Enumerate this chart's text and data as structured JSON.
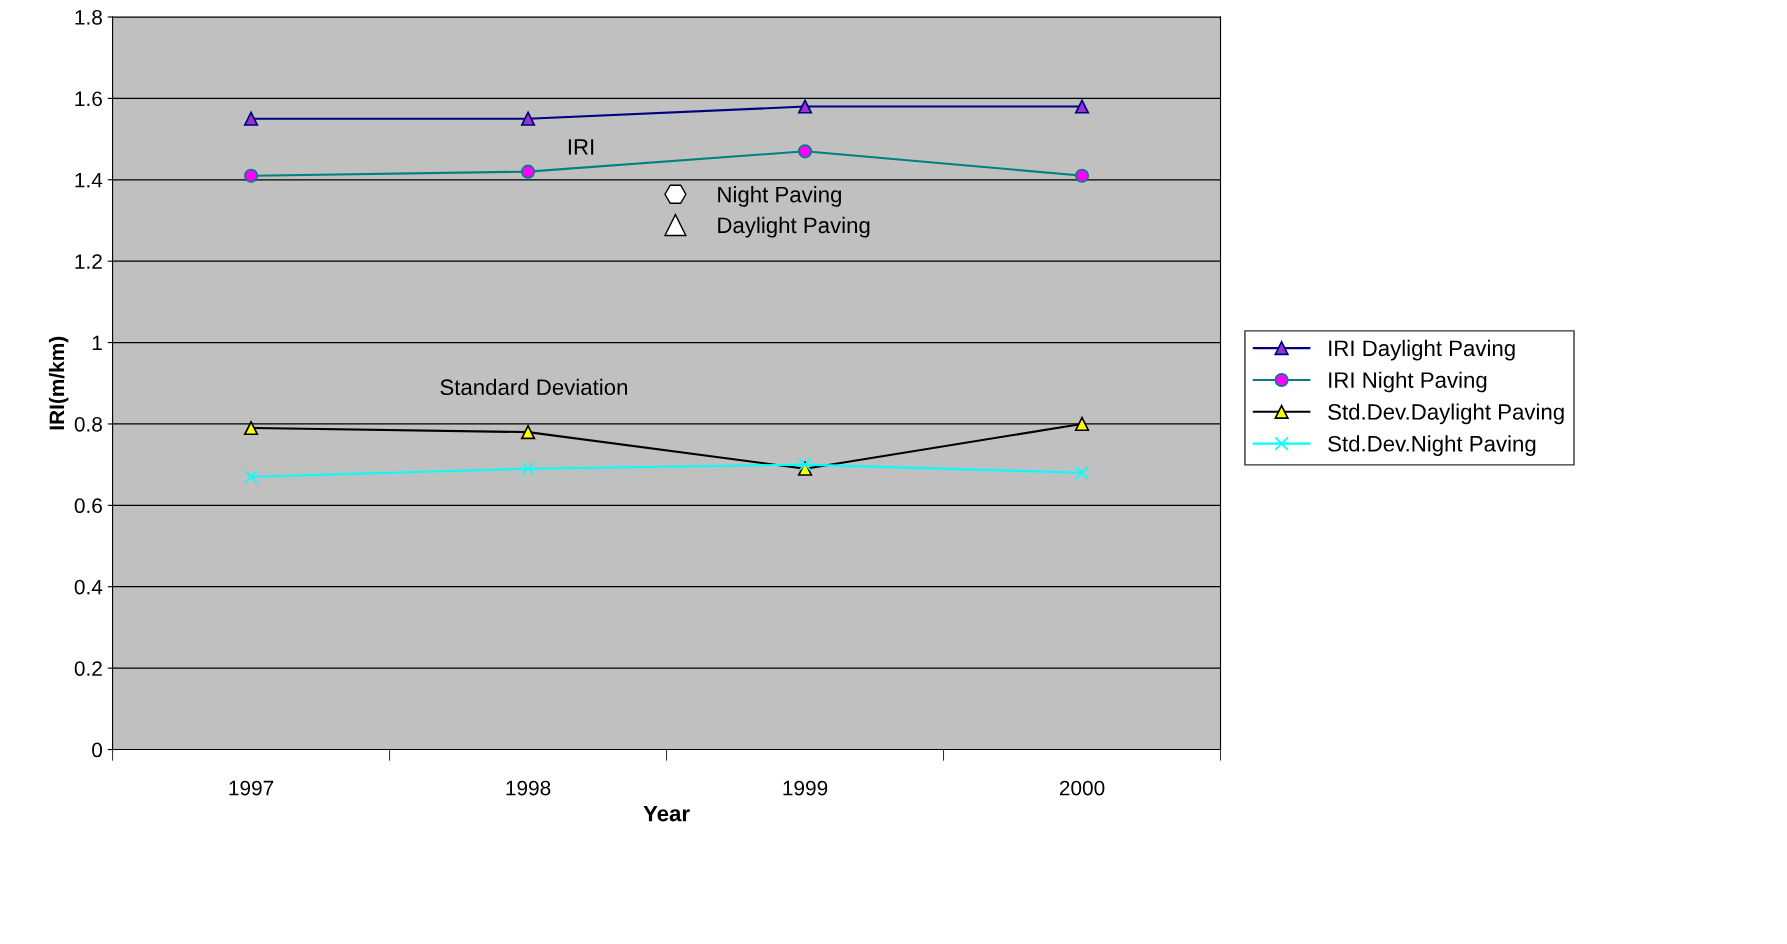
{
  "chart_data": {
    "type": "line",
    "xlabel": "Year",
    "ylabel": "IRI(m/km)",
    "categories": [
      "1997",
      "1998",
      "1999",
      "2000"
    ],
    "series": [
      {
        "name": "IRI Daylight Paving",
        "color": "#000080",
        "marker": "triangle",
        "values": [
          1.55,
          1.55,
          1.58,
          1.58
        ]
      },
      {
        "name": "IRI Night Paving",
        "color": "#008080",
        "marker": "circle",
        "values": [
          1.41,
          1.42,
          1.47,
          1.41
        ]
      },
      {
        "name": "Std.Dev.Daylight Paving",
        "color": "#000000",
        "marker": "triangle",
        "values": [
          0.79,
          0.78,
          0.69,
          0.8
        ]
      },
      {
        "name": "Std.Dev.Night Paving",
        "color": "#00ffff",
        "marker": "cross",
        "values": [
          0.67,
          0.69,
          0.7,
          0.68
        ]
      }
    ],
    "ylim": [
      0,
      1.8
    ],
    "yticks": [
      0,
      0.2,
      0.4,
      0.6,
      0.8,
      1,
      1.2,
      1.4,
      1.6,
      1.8
    ],
    "annotations": [
      "IRI",
      "Night Paving",
      "Daylight Paving",
      "Standard Deviation"
    ],
    "grid": "y",
    "legend": "right",
    "line_style": "solid"
  }
}
